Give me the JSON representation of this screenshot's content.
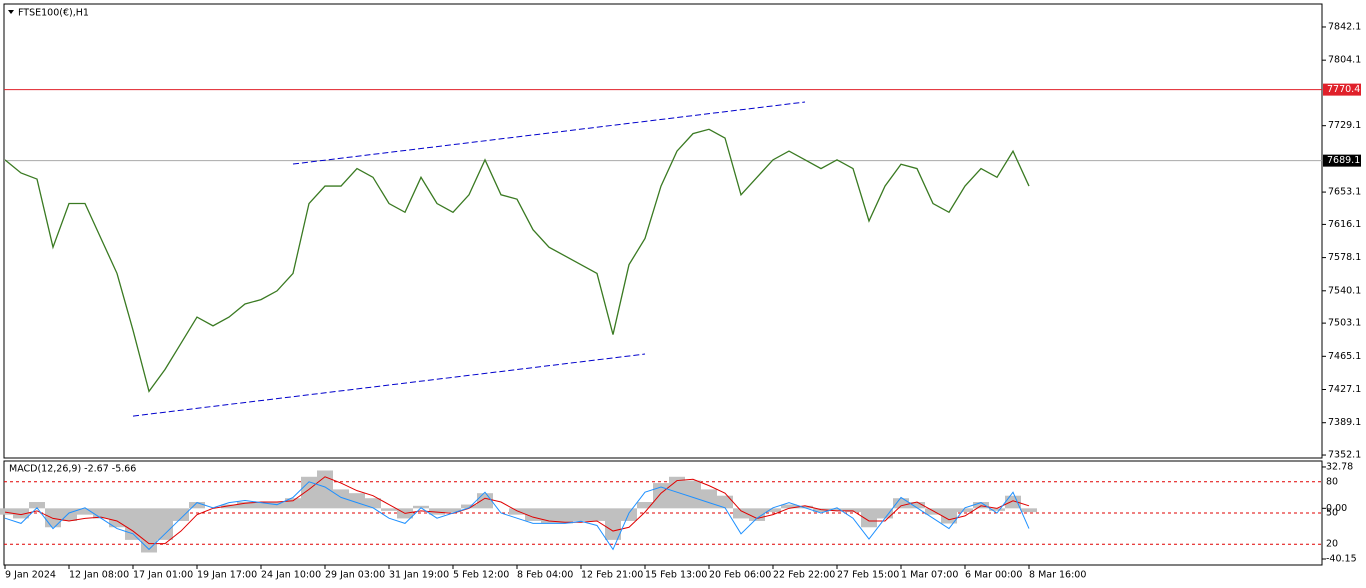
{
  "chart_data": [
    {
      "type": "line",
      "title": "FTSE100(€),H1",
      "categories": [
        "9 Jan 2024",
        null,
        null,
        null,
        "12 Jan 08:00",
        null,
        null,
        null,
        "17 Jan 01:00",
        null,
        null,
        null,
        "19 Jan 17:00",
        null,
        null,
        null,
        "24 Jan 10:00",
        null,
        null,
        null,
        "29 Jan 03:00",
        null,
        null,
        null,
        "31 Jan 19:00",
        null,
        null,
        null,
        "5 Feb 12:00",
        null,
        null,
        null,
        "8 Feb 04:00",
        null,
        null,
        null,
        "12 Feb 21:00",
        null,
        null,
        null,
        "15 Feb 13:00",
        null,
        null,
        null,
        "20 Feb 06:00",
        null,
        null,
        null,
        "22 Feb 22:00",
        null,
        null,
        null,
        "27 Feb 15:00",
        null,
        null,
        null,
        "1 Mar 07:00",
        null,
        null,
        null,
        "6 Mar 00:00",
        null,
        null,
        null,
        "8 Mar 16:00"
      ],
      "values": [
        7690,
        7675,
        7668,
        7590,
        7640,
        7640,
        7600,
        7560,
        7495,
        7425,
        7450,
        7480,
        7510,
        7500,
        7510,
        7525,
        7530,
        7540,
        7560,
        7640,
        7660,
        7660,
        7680,
        7670,
        7640,
        7630,
        7670,
        7640,
        7630,
        7650,
        7690,
        7650,
        7645,
        7610,
        7590,
        7580,
        7570,
        7560,
        7490,
        7570,
        7600,
        7660,
        7700,
        7720,
        7725,
        7715,
        7650,
        7670,
        7690,
        7700,
        7690,
        7680,
        7690,
        7680,
        7620,
        7660,
        7685,
        7680,
        7640,
        7630,
        7660,
        7680,
        7670,
        7700,
        7660
      ],
      "color": "#3a7a22",
      "ylim": [
        7348.7,
        7868.4
      ],
      "yticks": [
        7842.1,
        7804.1,
        7729.1,
        7653.1,
        7616.1,
        7578.1,
        7540.1,
        7503.1,
        7465.1,
        7427.1,
        7389.1,
        7352.1
      ],
      "price_levels": [
        {
          "value": 7770.4,
          "color": "#e0202a"
        },
        {
          "value": 7689.1,
          "color": "#000000"
        }
      ],
      "trendlines": [
        {
          "color": "#0000cc",
          "start": [
            18,
            7685.2
          ],
          "end": [
            50,
            7756.2
          ]
        },
        {
          "color": "#0000cc",
          "start": [
            8,
            7396.7
          ],
          "end": [
            40,
            7467.7
          ]
        }
      ]
    },
    {
      "type": "macd",
      "title": "MACD(12,26,9) -2.67 -5.66",
      "ylim": [
        -44.9,
        37.5
      ],
      "yticks": [
        32.78,
        {
          "value": 0,
          "label": "0.00"
        },
        -40.15
      ],
      "y2lim": [
        0,
        100
      ],
      "y2ticks": [
        80,
        50,
        20
      ],
      "series": [
        {
          "type": "histogram",
          "color": "#c0c0c0",
          "values": [
            -5,
            -8,
            5,
            -15,
            -10,
            -5,
            -8,
            -15,
            -25,
            -35,
            -25,
            -10,
            5,
            0,
            3,
            5,
            5,
            5,
            8,
            25,
            30,
            15,
            12,
            8,
            -2,
            -8,
            2,
            -5,
            -3,
            3,
            12,
            0,
            -5,
            -10,
            -12,
            -12,
            -10,
            -10,
            -25,
            -10,
            5,
            20,
            25,
            22,
            15,
            10,
            -8,
            -10,
            -3,
            3,
            2,
            -3,
            -2,
            -3,
            -15,
            -8,
            8,
            5,
            -5,
            -12,
            -3,
            5,
            -2,
            10,
            -3
          ]
        },
        {
          "type": "line",
          "color": "#e00000",
          "values": [
            -3,
            -5,
            -2,
            -8,
            -10,
            -8,
            -7,
            -10,
            -18,
            -28,
            -28,
            -18,
            -5,
            0,
            2,
            4,
            5,
            5,
            6,
            15,
            25,
            20,
            14,
            10,
            3,
            -4,
            -2,
            -3,
            -4,
            0,
            8,
            5,
            -2,
            -7,
            -10,
            -11,
            -11,
            -10,
            -18,
            -15,
            -3,
            12,
            22,
            23,
            18,
            12,
            -2,
            -8,
            -5,
            0,
            2,
            -1,
            -2,
            -2,
            -10,
            -10,
            2,
            5,
            -2,
            -9,
            -6,
            2,
            0,
            6,
            2
          ]
        },
        {
          "type": "line",
          "color": "#1e90ff",
          "axis": "y2",
          "values": [
            45,
            40,
            55,
            35,
            50,
            55,
            45,
            35,
            30,
            15,
            30,
            45,
            60,
            55,
            60,
            62,
            60,
            58,
            65,
            80,
            75,
            65,
            60,
            55,
            45,
            40,
            55,
            45,
            50,
            55,
            70,
            50,
            45,
            40,
            40,
            40,
            42,
            38,
            15,
            50,
            70,
            75,
            70,
            65,
            60,
            55,
            30,
            45,
            55,
            60,
            55,
            50,
            55,
            45,
            25,
            45,
            65,
            55,
            45,
            35,
            55,
            60,
            50,
            70,
            35
          ]
        }
      ]
    }
  ]
}
